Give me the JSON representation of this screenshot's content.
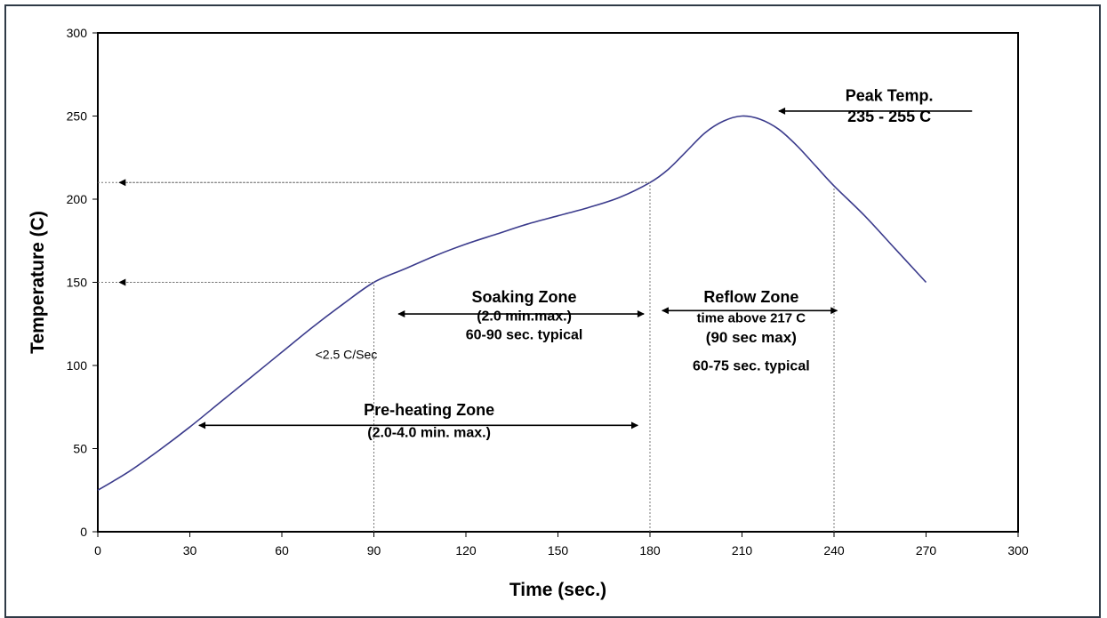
{
  "chart_data": {
    "type": "line",
    "xlabel": "Time (sec.)",
    "ylabel": "Temperature (C)",
    "xlim": [
      0,
      300
    ],
    "ylim": [
      0,
      300
    ],
    "x_ticks": [
      0,
      30,
      60,
      90,
      120,
      150,
      180,
      210,
      240,
      270,
      300
    ],
    "y_ticks": [
      0,
      50,
      100,
      150,
      200,
      250,
      300
    ],
    "grid": false,
    "legend": "none",
    "line_color": "#3b3b8c",
    "series": [
      {
        "x": [
          0,
          10,
          20,
          30,
          40,
          50,
          60,
          70,
          80,
          90,
          100,
          110,
          120,
          130,
          140,
          150,
          160,
          170,
          180,
          186,
          192,
          198,
          204,
          210,
          216,
          222,
          228,
          234,
          240,
          250,
          260,
          270
        ],
        "y": [
          25,
          36,
          49,
          63,
          78,
          93,
          108,
          123,
          137,
          150,
          158,
          166,
          173,
          179,
          185,
          190,
          195,
          201,
          210,
          218,
          229,
          240,
          247,
          250,
          248,
          242,
          232,
          220,
          208,
          190,
          170,
          150
        ]
      }
    ],
    "reference_lines": [
      {
        "from": [
          0,
          150
        ],
        "to": [
          90,
          150
        ]
      },
      {
        "from": [
          0,
          210
        ],
        "to": [
          180,
          210
        ]
      },
      {
        "from": [
          90,
          0
        ],
        "to": [
          90,
          150
        ]
      },
      {
        "from": [
          180,
          0
        ],
        "to": [
          180,
          210
        ]
      },
      {
        "from": [
          240,
          0
        ],
        "to": [
          240,
          208
        ]
      }
    ],
    "arrows": [
      {
        "from": [
          90,
          150
        ],
        "to": [
          7,
          150
        ],
        "kind": "dotted"
      },
      {
        "from": [
          180,
          210
        ],
        "to": [
          7,
          210
        ],
        "kind": "dotted"
      },
      {
        "from": [
          285,
          253
        ],
        "to": [
          222,
          253
        ],
        "kind": "solid"
      },
      {
        "from": [
          98,
          131
        ],
        "to": [
          178,
          131
        ],
        "kind": "double"
      },
      {
        "from": [
          184,
          133
        ],
        "to": [
          241,
          133
        ],
        "kind": "double"
      },
      {
        "from": [
          33,
          64
        ],
        "to": [
          176,
          64
        ],
        "kind": "double"
      }
    ],
    "annotations": [
      {
        "lines": [
          "Peak Temp.",
          "235 - 255 C"
        ],
        "x": 258,
        "y": 259,
        "bold": true,
        "size": 18
      },
      {
        "lines": [
          "Soaking Zone"
        ],
        "x": 139,
        "y": 138,
        "bold": true,
        "size": 18
      },
      {
        "lines": [
          "(2.0 min.max.)",
          "60-90 sec. typical"
        ],
        "x": 139,
        "y": 127,
        "bold": true,
        "size": 16
      },
      {
        "lines": [
          "Reflow Zone"
        ],
        "x": 213,
        "y": 138,
        "bold": true,
        "size": 18
      },
      {
        "lines": [
          "time above 217 C"
        ],
        "x": 213,
        "y": 126,
        "bold": true,
        "size": 15
      },
      {
        "lines": [
          "(90 sec max)"
        ],
        "x": 213,
        "y": 114,
        "bold": true,
        "size": 17
      },
      {
        "lines": [
          "60-75 sec. typical"
        ],
        "x": 213,
        "y": 97,
        "bold": true,
        "size": 16
      },
      {
        "lines": [
          "Pre-heating Zone"
        ],
        "x": 108,
        "y": 70,
        "bold": true,
        "size": 18
      },
      {
        "lines": [
          "(2.0-4.0 min. max.)"
        ],
        "x": 108,
        "y": 57,
        "bold": true,
        "size": 16
      },
      {
        "lines": [
          "<2.5 C/Sec"
        ],
        "x": 81,
        "y": 104,
        "bold": false,
        "size": 14
      }
    ]
  }
}
